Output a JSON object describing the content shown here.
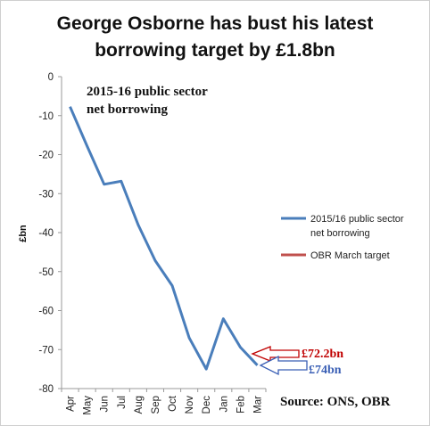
{
  "colors": {
    "series": "#4a7ebb",
    "target": "#c0504d",
    "callout_target": "#c00000",
    "callout_actual": "#3a5fb5",
    "gridline": "#e6e6e6",
    "axis": "#9a9a9a"
  },
  "chart_data": {
    "type": "line",
    "title_line1": "George Osborne has bust his latest",
    "title_line2": "borrowing target by £1.8bn",
    "annotation_line1": "2015-16 public sector",
    "annotation_line2": "net borrowing",
    "ylabel": "£bn",
    "xlabel": "",
    "ylim": [
      -80,
      0
    ],
    "yticks": [
      0,
      -10,
      -20,
      -30,
      -40,
      -50,
      -60,
      -70,
      -80
    ],
    "grid": false,
    "legend_position": "right",
    "categories": [
      "Apr",
      "May",
      "Jun",
      "Jul",
      "Aug",
      "Sep",
      "Oct",
      "Nov",
      "Dec",
      "Jan",
      "Feb",
      "Mar"
    ],
    "series": [
      {
        "name": "2015/16 public sector net borrowing",
        "legend_line1": "2015/16 public sector",
        "legend_line2": "net borrowing",
        "values": [
          -7.7,
          -17.8,
          -27.6,
          -26.8,
          -38.0,
          -47.2,
          -53.6,
          -67.0,
          -75.0,
          -62.1,
          -69.4,
          -74.0
        ]
      },
      {
        "name": "OBR March target",
        "legend_line1": "OBR March target",
        "value": -72.2
      }
    ],
    "callouts": {
      "target_label": "£72.2bn",
      "actual_label": "£74bn"
    },
    "source": "Source: ONS, OBR"
  }
}
